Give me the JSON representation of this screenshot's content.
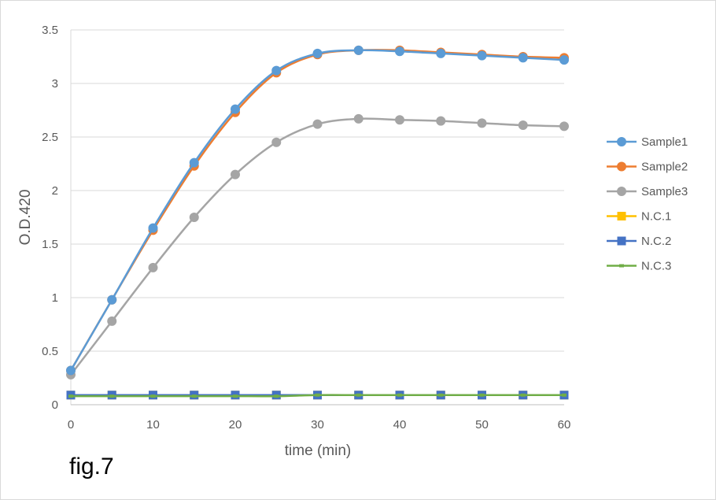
{
  "chart_data": {
    "type": "line",
    "caption": "fig.7",
    "xlabel": "time (min)",
    "ylabel": "O.D.420",
    "xlim": [
      0,
      60
    ],
    "ylim": [
      0,
      3.5
    ],
    "x_ticks": [
      "0",
      "10",
      "20",
      "30",
      "40",
      "50",
      "60"
    ],
    "y_ticks": [
      "0",
      "0.5",
      "1",
      "1.5",
      "2",
      "2.5",
      "3",
      "3.5"
    ],
    "grid": "horizontal",
    "legend_position": "right",
    "x": [
      0,
      5,
      10,
      15,
      20,
      25,
      30,
      35,
      40,
      45,
      50,
      55,
      60
    ],
    "series": [
      {
        "name": "Sample1",
        "color": "#5b9bd5",
        "marker": "circle",
        "values": [
          0.32,
          0.98,
          1.65,
          2.26,
          2.76,
          3.12,
          3.28,
          3.31,
          3.3,
          3.28,
          3.26,
          3.24,
          3.22
        ]
      },
      {
        "name": "Sample2",
        "color": "#ed7d31",
        "marker": "circle",
        "values": [
          0.32,
          0.98,
          1.63,
          2.23,
          2.73,
          3.1,
          3.27,
          3.31,
          3.31,
          3.29,
          3.27,
          3.25,
          3.24
        ]
      },
      {
        "name": "Sample3",
        "color": "#a5a5a5",
        "marker": "circle",
        "values": [
          0.28,
          0.78,
          1.28,
          1.75,
          2.15,
          2.45,
          2.62,
          2.67,
          2.66,
          2.65,
          2.63,
          2.61,
          2.6
        ]
      },
      {
        "name": "N.C.1",
        "color": "#ffc000",
        "marker": "square",
        "values": [
          0.09,
          0.09,
          0.09,
          0.09,
          0.09,
          0.09,
          0.09,
          0.09,
          0.09,
          0.09,
          0.09,
          0.09,
          0.09
        ]
      },
      {
        "name": "N.C.2",
        "color": "#4472c4",
        "marker": "square",
        "values": [
          0.09,
          0.09,
          0.09,
          0.09,
          0.09,
          0.09,
          0.09,
          0.09,
          0.09,
          0.09,
          0.09,
          0.09,
          0.09
        ]
      },
      {
        "name": "N.C.3",
        "color": "#70ad47",
        "marker": "dash",
        "values": [
          0.08,
          0.08,
          0.08,
          0.08,
          0.08,
          0.08,
          0.09,
          0.09,
          0.09,
          0.09,
          0.09,
          0.09,
          0.09
        ]
      }
    ]
  }
}
